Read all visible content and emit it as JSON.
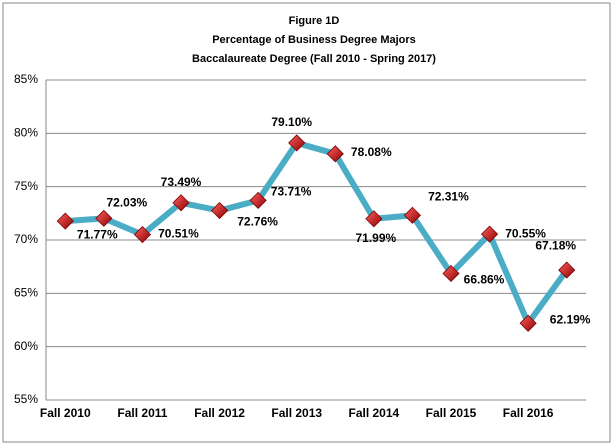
{
  "chart_data": {
    "type": "line",
    "title": [
      "Figure 1D",
      "Percentage of Business Degree Majors",
      "Baccalaureate Degree (Fall 2010 - Spring 2017)"
    ],
    "categories": [
      "Fall 2010",
      null,
      "Fall 2011",
      null,
      "Fall 2012",
      null,
      "Fall 2013",
      null,
      "Fall 2014",
      null,
      "Fall 2015",
      null,
      "Fall 2016",
      null
    ],
    "series": [
      {
        "color": "#4bacc6",
        "marker_color": "#c00000",
        "values": [
          71.77,
          72.03,
          70.51,
          73.49,
          72.76,
          73.71,
          79.1,
          78.08,
          71.99,
          72.31,
          66.86,
          70.55,
          62.19,
          67.18
        ],
        "value_labels": [
          "71.77%",
          "72.03%",
          "70.51%",
          "73.49%",
          "72.76%",
          "73.71%",
          "79.10%",
          "78.08%",
          "71.99%",
          "72.31%",
          "66.86%",
          "70.55%",
          "62.19%",
          "67.18%"
        ]
      }
    ],
    "ylim": [
      55,
      85
    ],
    "yticks": [
      {
        "value": 55,
        "label": "55%"
      },
      {
        "value": 60,
        "label": "60%"
      },
      {
        "value": 65,
        "label": "65%"
      },
      {
        "value": 70,
        "label": "70%"
      },
      {
        "value": 75,
        "label": "75%"
      },
      {
        "value": 80,
        "label": "80%"
      },
      {
        "value": 85,
        "label": "85%"
      }
    ],
    "grid": true
  }
}
